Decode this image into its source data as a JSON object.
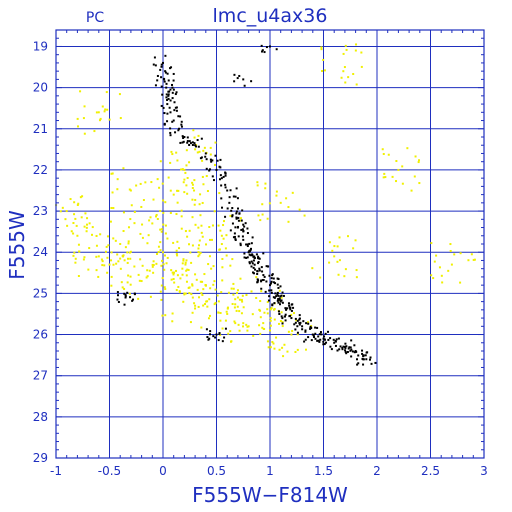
{
  "chart_data": {
    "type": "scatter",
    "title": "lmc_u4ax36",
    "corner_label": "PC",
    "xlabel": "F555W−F814W",
    "ylabel": "F555W",
    "xlim": [
      -1,
      3
    ],
    "ylim": [
      29,
      18.6
    ],
    "y_inverted": true,
    "grid": true,
    "x_ticks": [
      -1,
      -0.5,
      0,
      0.5,
      1,
      1.5,
      2,
      2.5,
      3
    ],
    "x_tick_labels": [
      "-1",
      "-0.5",
      "0",
      "0.5",
      "1",
      "1.5",
      "2",
      "2.5",
      "3"
    ],
    "y_ticks": [
      19,
      20,
      21,
      22,
      23,
      24,
      25,
      26,
      27,
      28,
      29
    ],
    "y_tick_labels": [
      "19",
      "20",
      "21",
      "22",
      "23",
      "24",
      "25",
      "26",
      "27",
      "28",
      "29"
    ],
    "colors": {
      "frame": "#1f2fbf",
      "grid": "#1f2fbf",
      "text": "#1f2fbf",
      "series_black": "#000000",
      "series_yellow": "#f0f000"
    },
    "series": [
      {
        "color": "#000000",
        "points": [
          [
            0,
            19.4
          ],
          [
            0.02,
            19.6
          ],
          [
            0.01,
            19.8
          ],
          [
            0.03,
            20
          ],
          [
            0.05,
            20.2
          ],
          [
            0.04,
            20.4
          ],
          [
            0.07,
            20.6
          ],
          [
            0.1,
            20.8
          ],
          [
            0.15,
            21
          ],
          [
            0.2,
            21.2
          ],
          [
            0.3,
            21.4
          ],
          [
            0.4,
            21.6
          ],
          [
            0.45,
            21.8
          ],
          [
            0.5,
            22
          ],
          [
            0.55,
            22.2
          ],
          [
            0.6,
            22.5
          ],
          [
            0.62,
            22.8
          ],
          [
            0.65,
            23.1
          ],
          [
            0.7,
            23.4
          ],
          [
            0.75,
            23.7
          ],
          [
            0.8,
            24
          ],
          [
            0.85,
            24.2
          ],
          [
            0.9,
            24.4
          ],
          [
            0.95,
            24.6
          ],
          [
            1,
            24.8
          ],
          [
            1.05,
            25
          ],
          [
            1.1,
            25.2
          ],
          [
            1.15,
            25.4
          ],
          [
            1.2,
            25.6
          ],
          [
            1.3,
            25.8
          ],
          [
            1.4,
            26
          ],
          [
            1.5,
            26.1
          ],
          [
            1.6,
            26.2
          ],
          [
            1.7,
            26.3
          ],
          [
            1.8,
            26.4
          ],
          [
            1.9,
            26.6
          ],
          [
            -0.35,
            25.1
          ],
          [
            0.75,
            19.8
          ],
          [
            1,
            19
          ],
          [
            0.5,
            26
          ],
          [
            0.05,
            20.1
          ],
          [
            0.25,
            21.3
          ]
        ]
      },
      {
        "color": "#f0f000",
        "points": [
          [
            -0.9,
            23
          ],
          [
            -0.8,
            23.6
          ],
          [
            -0.6,
            24.1
          ],
          [
            -0.4,
            23.8
          ],
          [
            -0.3,
            22.5
          ],
          [
            -0.1,
            23.3
          ],
          [
            0,
            24
          ],
          [
            0.1,
            24.5
          ],
          [
            0.2,
            25
          ],
          [
            0.3,
            25.3
          ],
          [
            0.4,
            24.8
          ],
          [
            0.6,
            25.5
          ],
          [
            0.8,
            25.8
          ],
          [
            1,
            25.9
          ],
          [
            1.2,
            26
          ],
          [
            0.1,
            22.6
          ],
          [
            0.2,
            22
          ],
          [
            -0.2,
            24.7
          ],
          [
            -0.5,
            24.3
          ],
          [
            0.35,
            23.1
          ],
          [
            0.55,
            23.6
          ],
          [
            1.7,
            19.5
          ],
          [
            2.7,
            24.3
          ],
          [
            2.2,
            22
          ],
          [
            1.1,
            22.8
          ],
          [
            1.6,
            24.1
          ],
          [
            -0.6,
            20.6
          ],
          [
            0.3,
            21.5
          ],
          [
            0.15,
            23.9
          ],
          [
            0.45,
            24.4
          ],
          [
            0.7,
            25.1
          ],
          [
            0.9,
            25.4
          ]
        ]
      }
    ]
  }
}
